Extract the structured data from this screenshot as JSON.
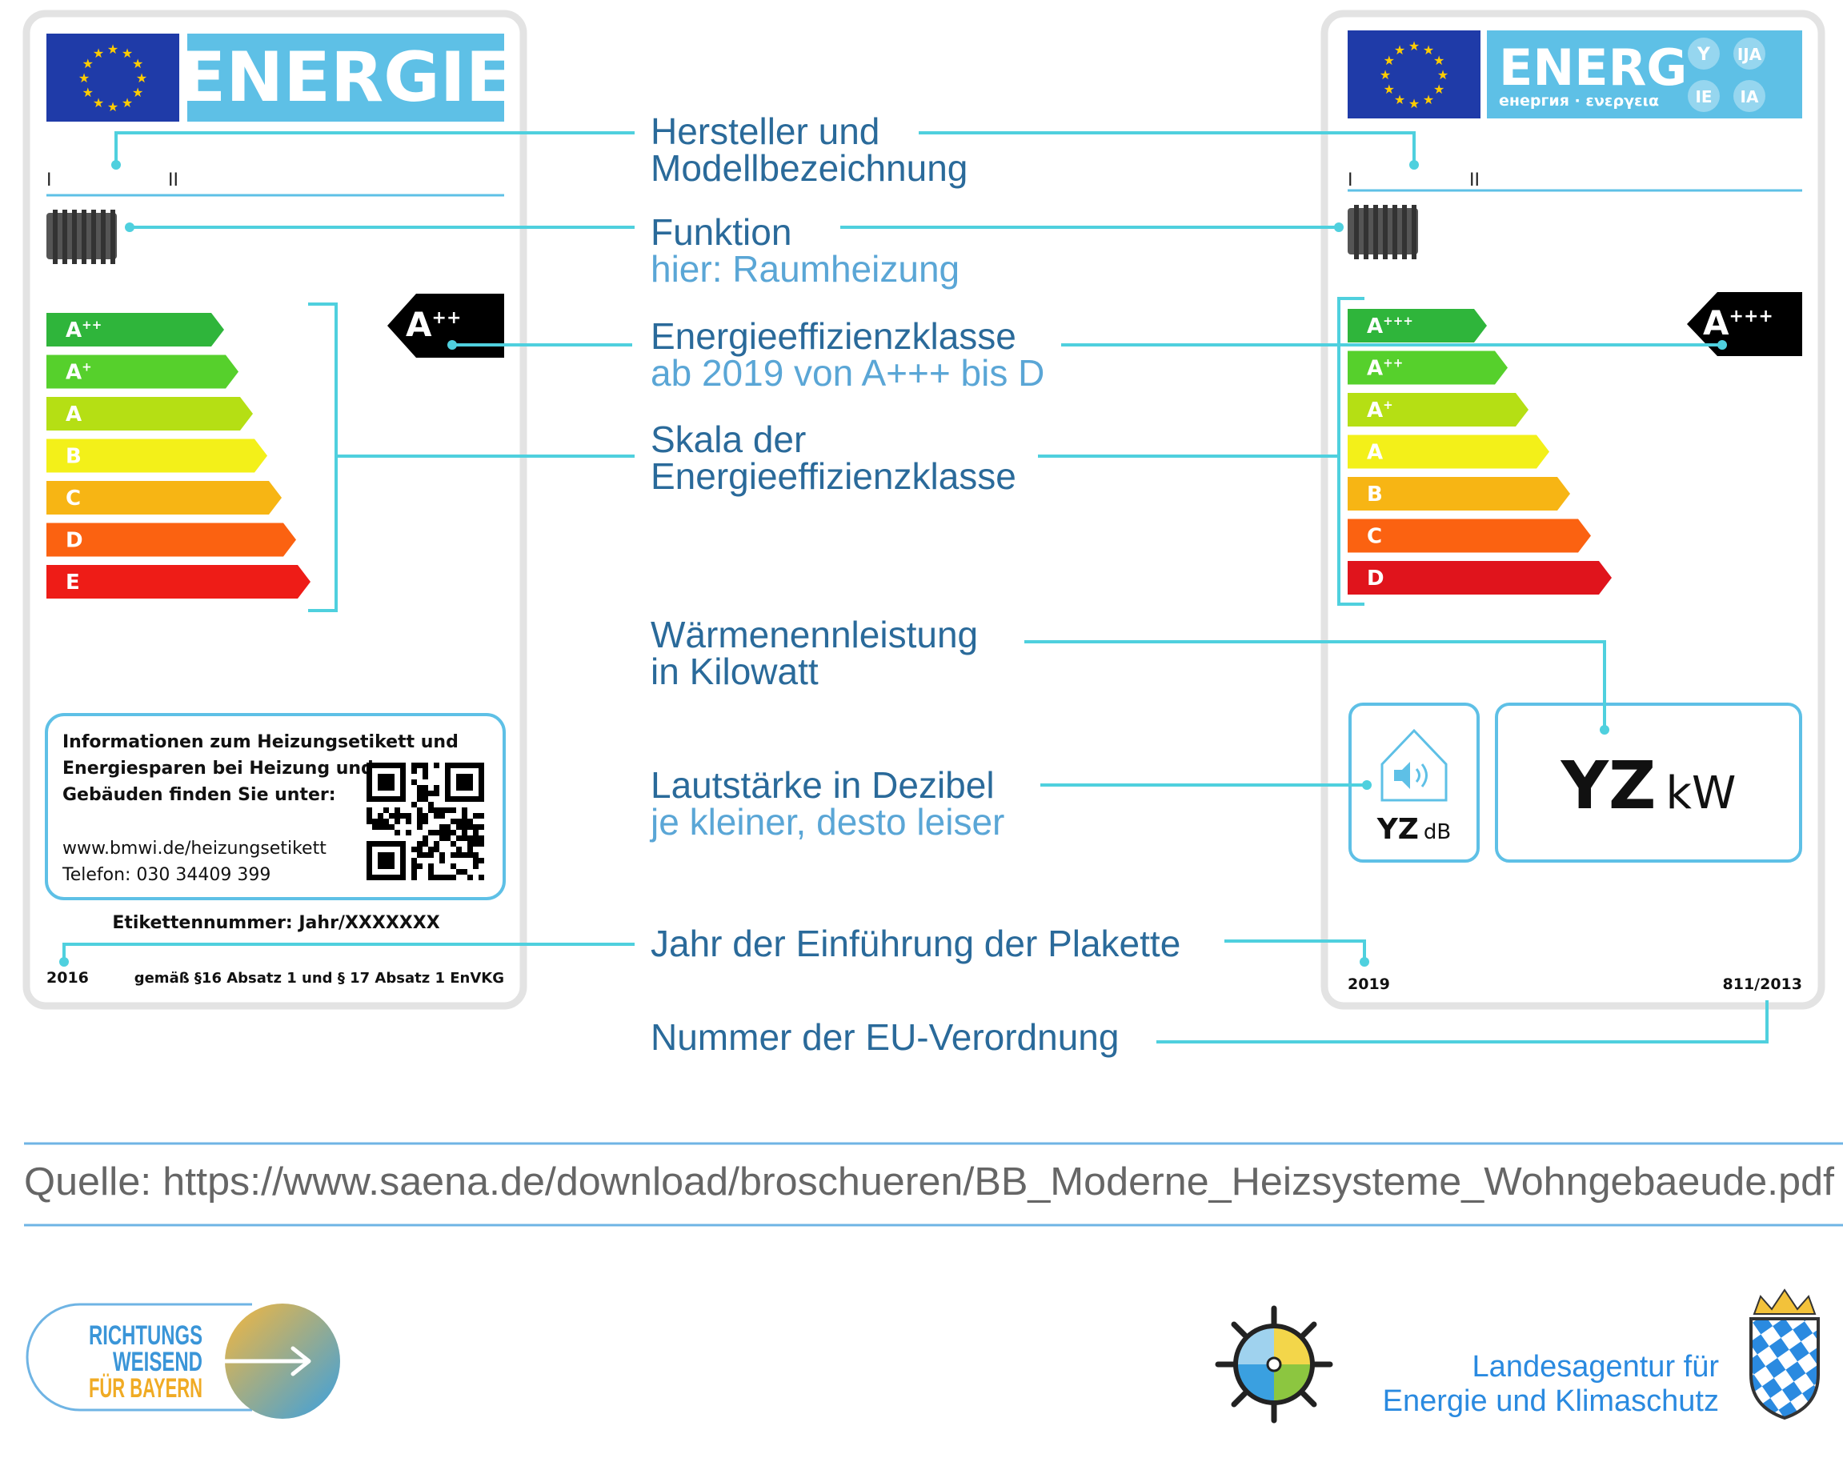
{
  "colors": {
    "callout_blue": "#2a6a9a",
    "callout_light": "#5aa6d6",
    "connector": "#4fd0de",
    "eu_blue": "#1f3ba8",
    "label_blue": "#5ec0e6",
    "frame_gray": "#e3e3e3",
    "source_gray": "#666666"
  },
  "old_label": {
    "header_word": "ENERGIE",
    "row_marks": [
      "I",
      "II"
    ],
    "energy_class": "A",
    "energy_class_sup": "++",
    "scale": [
      {
        "letter": "A",
        "sup": "++",
        "color": "#2fb53b"
      },
      {
        "letter": "A",
        "sup": "+",
        "color": "#56d02c"
      },
      {
        "letter": "A",
        "sup": "",
        "color": "#b5df14"
      },
      {
        "letter": "B",
        "sup": "",
        "color": "#f3f019"
      },
      {
        "letter": "C",
        "sup": "",
        "color": "#f7b514"
      },
      {
        "letter": "D",
        "sup": "",
        "color": "#fb6211"
      },
      {
        "letter": "E",
        "sup": "",
        "color": "#ee1c17"
      }
    ],
    "info_lines": [
      "Informationen zum Heizungsetikett und",
      "Energiesparen bei Heizung und",
      "Gebäuden finden Sie unter:"
    ],
    "url": "www.bmwi.de/heizungsetikett",
    "phone": "Telefon:  030 34409 399",
    "label_number": "Etikettennummer: Jahr/XXXXXXX",
    "year": "2016",
    "regulation": "gemäß §16 Absatz 1 und § 17 Absatz 1 EnVKG"
  },
  "new_label": {
    "header_word": "ENERG",
    "header_sub": "енергия · ενεργεια",
    "lang_badges": [
      "Y",
      "IJA",
      "IE",
      "IA"
    ],
    "row_marks": [
      "I",
      "II"
    ],
    "energy_class": "A",
    "energy_class_sup": "+++",
    "scale": [
      {
        "letter": "A",
        "sup": "+++",
        "color": "#2fb53b"
      },
      {
        "letter": "A",
        "sup": "++",
        "color": "#56d02c"
      },
      {
        "letter": "A",
        "sup": "+",
        "color": "#b5df14"
      },
      {
        "letter": "A",
        "sup": "",
        "color": "#f3f019"
      },
      {
        "letter": "B",
        "sup": "",
        "color": "#f7b514"
      },
      {
        "letter": "C",
        "sup": "",
        "color": "#fb6211"
      },
      {
        "letter": "D",
        "sup": "",
        "color": "#e0141c"
      }
    ],
    "sound_value": "YZ",
    "sound_unit": "dB",
    "power_value": "YZ",
    "power_unit": "kW",
    "year": "2019",
    "regulation": "811/2013"
  },
  "callouts": [
    {
      "title": [
        "Hersteller und",
        "Modellbezeichnung"
      ],
      "sub": []
    },
    {
      "title": [
        "Funktion"
      ],
      "sub": [
        "hier: Raumheizung"
      ]
    },
    {
      "title": [
        "Energieeffizienzklasse"
      ],
      "sub": [
        "ab 2019 von A+++ bis D"
      ]
    },
    {
      "title": [
        "Skala der",
        "Energieeffizienzklasse"
      ],
      "sub": []
    },
    {
      "title": [
        "Wärmenennleistung",
        "in Kilowatt"
      ],
      "sub": []
    },
    {
      "title": [
        "Lautstärke in Dezibel"
      ],
      "sub": [
        "je kleiner, desto leiser"
      ]
    },
    {
      "title": [
        "Jahr der Einführung der Plakette"
      ],
      "sub": []
    },
    {
      "title": [
        "Nummer der EU-Verordnung"
      ],
      "sub": []
    }
  ],
  "source": "Quelle: https://www.saena.de/download/broschueren/BB_Moderne_Heizsysteme_Wohngebaeude.pdf",
  "footer_left": {
    "lines": [
      "RICHTUNGS",
      "WEISEND",
      "FÜR BAYERN"
    ]
  },
  "footer_right": {
    "lines": [
      "Landesagentur für",
      "Energie und Klimaschutz"
    ]
  }
}
